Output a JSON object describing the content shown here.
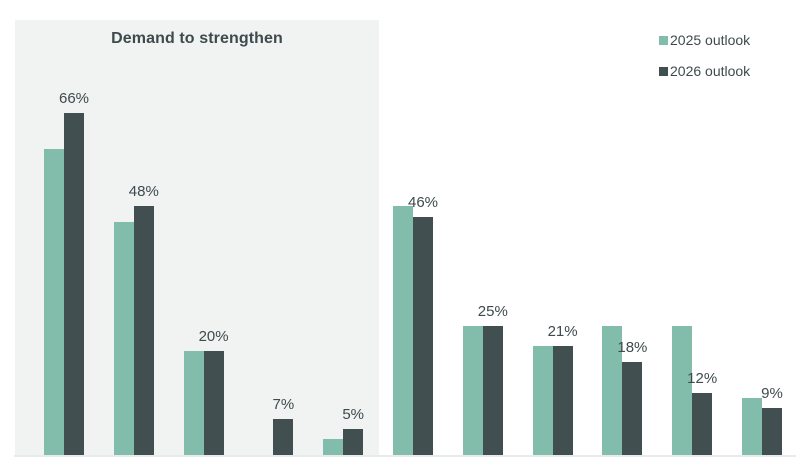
{
  "chart_data": {
    "type": "bar",
    "title": "",
    "region_annotation": {
      "label": "Demand to strengthen",
      "covers_group_indices": [
        0,
        4
      ]
    },
    "legend": {
      "position": "top-right",
      "entries": [
        {
          "label": "2025 outlook",
          "color": "#82BCAB"
        },
        {
          "label": "2026 outlook",
          "color": "#424F51"
        }
      ]
    },
    "groups": 11,
    "category_axis_labels_shown": false,
    "series": [
      {
        "name": "2025 outlook",
        "color": "#82BCAB",
        "values": [
          59,
          45,
          20,
          0,
          3,
          48,
          25,
          21,
          25,
          25,
          11
        ],
        "data_labels": null
      },
      {
        "name": "2026 outlook",
        "color": "#424F51",
        "values": [
          66,
          48,
          20,
          7,
          5,
          46,
          25,
          21,
          18,
          12,
          9
        ],
        "data_labels": [
          "66%",
          "48%",
          "20%",
          "7%",
          "5%",
          "46%",
          "25%",
          "21%",
          "18%",
          "12%",
          "9%"
        ]
      }
    ],
    "ylim": [
      0,
      85
    ],
    "grid": false,
    "y_axis_shown": false,
    "x_baseline_shown": true
  },
  "colors": {
    "background": "#FFFFFF",
    "shaded_region": "#F1F2F2",
    "text": "#3E4A4C",
    "axis_line": "#E8EBEB"
  }
}
